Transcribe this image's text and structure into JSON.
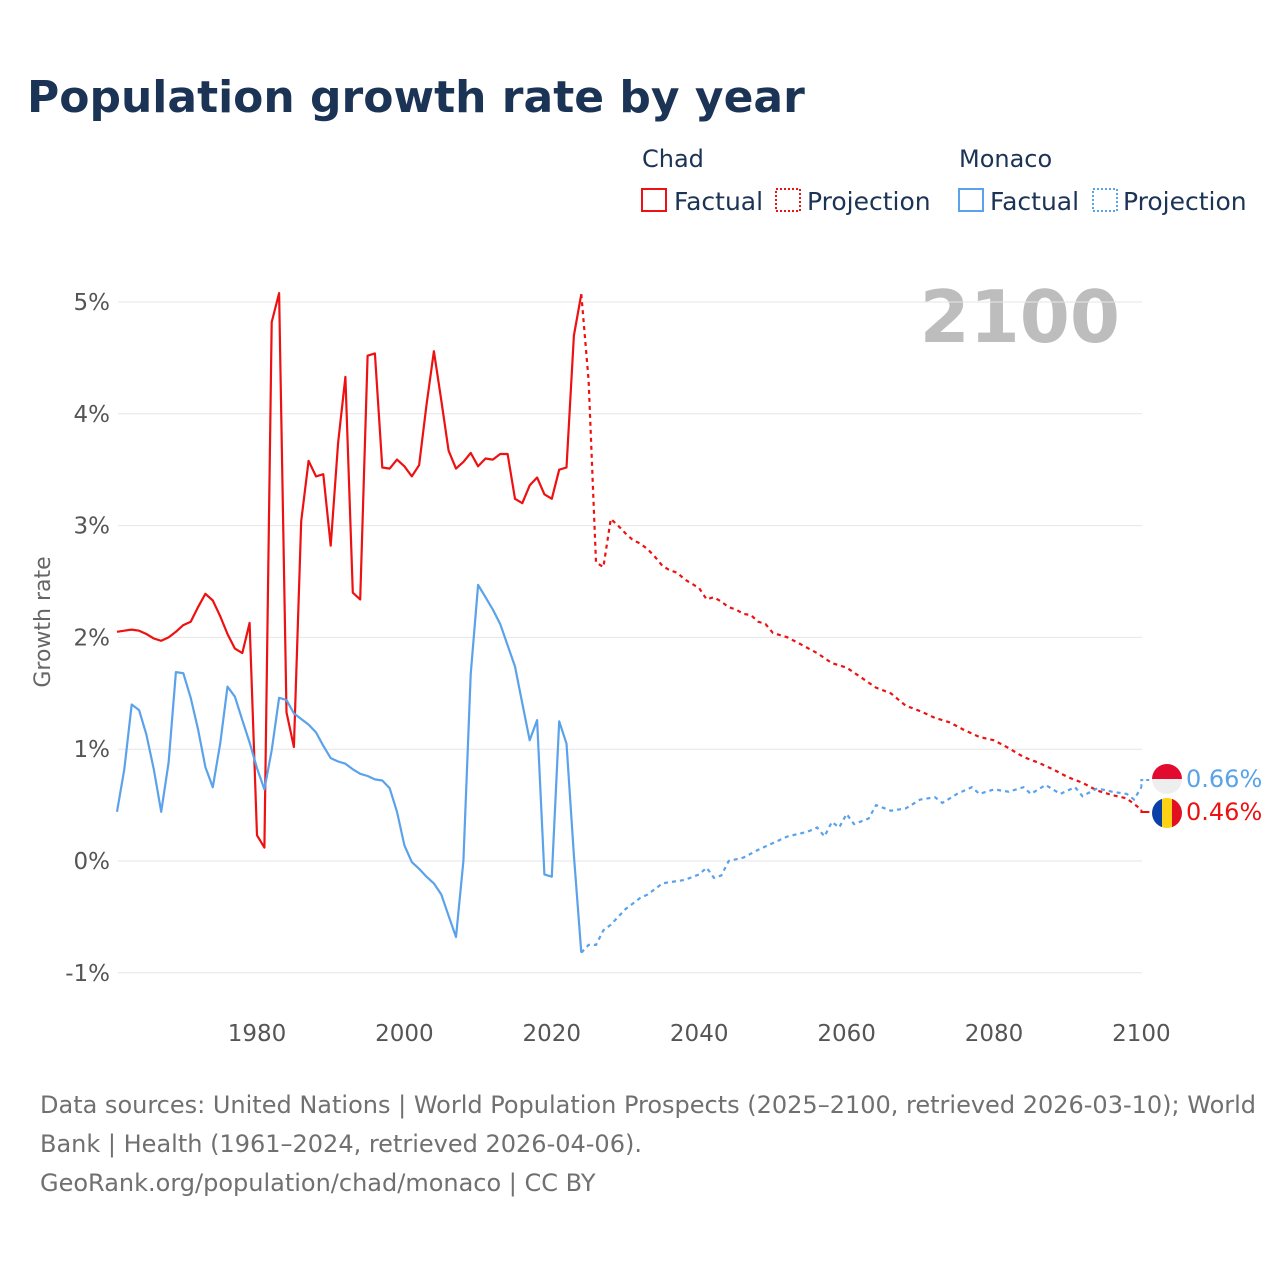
{
  "title": "Population growth rate by year",
  "legend": {
    "groups": [
      {
        "country": "Chad",
        "color": "#ee1111",
        "factual": "Factual",
        "projection": "Projection"
      },
      {
        "country": "Monaco",
        "color": "#5aa2ea",
        "factual": "Factual",
        "projection": "Projection"
      }
    ]
  },
  "current_year_label": "2100",
  "footer": {
    "line1": "Data sources: United Nations | World Population Prospects (2025–2100, retrieved 2026-03-10); World",
    "line2": "Bank | Health (1961–2024, retrieved 2026-04-06).",
    "line3": "GeoRank.org/population/chad/monaco | CC BY"
  },
  "chart_data": {
    "type": "line",
    "title": "Population growth rate by year",
    "xlabel": "",
    "ylabel": "Growth rate",
    "xlim": [
      1961,
      2100
    ],
    "ylim": [
      -1.2,
      5.3
    ],
    "x_ticks": [
      1980,
      2000,
      2020,
      2040,
      2060,
      2080,
      2100
    ],
    "x_tick_labels": [
      "1980",
      "2000",
      "2020",
      "2040",
      "2060",
      "2080",
      "2100"
    ],
    "y_ticks": [
      -1,
      0,
      1,
      2,
      3,
      4,
      5
    ],
    "y_tick_labels": [
      "-1%",
      "0%",
      "1%",
      "2%",
      "3%",
      "4%",
      "5%"
    ],
    "grid": true,
    "legend_position": "top-right",
    "series": [
      {
        "name": "Chad",
        "color": "#ee1111",
        "end_label": "0.46%",
        "factual_start": 1961,
        "factual": [
          2.05,
          2.06,
          2.07,
          2.06,
          2.03,
          1.99,
          1.97,
          2.0,
          2.05,
          2.11,
          2.14,
          2.27,
          2.39,
          2.33,
          2.19,
          2.03,
          1.9,
          1.86,
          2.13,
          0.23,
          0.12,
          4.82,
          5.08,
          1.33,
          1.02,
          3.04,
          3.58,
          3.44,
          3.46,
          2.82,
          3.74,
          4.33,
          2.4,
          2.34,
          4.52,
          4.54,
          3.52,
          3.51,
          3.59,
          3.53,
          3.44,
          3.54,
          4.08,
          4.56,
          4.12,
          3.67,
          3.51,
          3.57,
          3.65,
          3.53,
          3.6,
          3.59,
          3.64,
          3.64,
          3.24,
          3.2,
          3.36,
          3.43,
          3.28,
          3.24,
          3.5,
          3.52,
          4.7,
          5.07
        ],
        "projection": [
          [
            2024,
            5.07
          ],
          [
            2025,
            4.3
          ],
          [
            2026,
            2.67
          ],
          [
            2027,
            2.63
          ],
          [
            2028,
            3.06
          ],
          [
            2029,
            3.0
          ],
          [
            2030,
            2.93
          ],
          [
            2031,
            2.87
          ],
          [
            2032,
            2.84
          ],
          [
            2033,
            2.79
          ],
          [
            2034,
            2.72
          ],
          [
            2035,
            2.64
          ],
          [
            2036,
            2.6
          ],
          [
            2037,
            2.58
          ],
          [
            2038,
            2.52
          ],
          [
            2039,
            2.48
          ],
          [
            2040,
            2.44
          ],
          [
            2041,
            2.34
          ],
          [
            2042,
            2.36
          ],
          [
            2043,
            2.32
          ],
          [
            2044,
            2.27
          ],
          [
            2045,
            2.25
          ],
          [
            2046,
            2.21
          ],
          [
            2047,
            2.2
          ],
          [
            2048,
            2.14
          ],
          [
            2049,
            2.12
          ],
          [
            2050,
            2.04
          ],
          [
            2052,
            2.0
          ],
          [
            2054,
            1.93
          ],
          [
            2056,
            1.86
          ],
          [
            2058,
            1.77
          ],
          [
            2060,
            1.73
          ],
          [
            2062,
            1.64
          ],
          [
            2064,
            1.55
          ],
          [
            2066,
            1.5
          ],
          [
            2068,
            1.39
          ],
          [
            2070,
            1.34
          ],
          [
            2072,
            1.28
          ],
          [
            2074,
            1.24
          ],
          [
            2076,
            1.17
          ],
          [
            2078,
            1.11
          ],
          [
            2080,
            1.08
          ],
          [
            2082,
            1.01
          ],
          [
            2084,
            0.93
          ],
          [
            2086,
            0.88
          ],
          [
            2088,
            0.82
          ],
          [
            2090,
            0.75
          ],
          [
            2092,
            0.7
          ],
          [
            2094,
            0.63
          ],
          [
            2096,
            0.59
          ],
          [
            2098,
            0.56
          ],
          [
            2100,
            0.46
          ]
        ]
      },
      {
        "name": "Monaco",
        "color": "#5aa2ea",
        "end_label": "0.66%",
        "factual_start": 1961,
        "factual": [
          0.44,
          0.82,
          1.4,
          1.35,
          1.13,
          0.82,
          0.44,
          0.88,
          1.69,
          1.68,
          1.46,
          1.18,
          0.84,
          0.66,
          1.05,
          1.56,
          1.47,
          1.26,
          1.06,
          0.83,
          0.64,
          0.99,
          1.46,
          1.44,
          1.32,
          1.27,
          1.22,
          1.15,
          1.03,
          0.92,
          0.89,
          0.87,
          0.82,
          0.78,
          0.76,
          0.73,
          0.72,
          0.65,
          0.44,
          0.14,
          -0.01,
          -0.07,
          -0.14,
          -0.2,
          -0.3,
          -0.49,
          -0.68,
          0.0,
          1.67,
          2.47,
          2.36,
          2.25,
          2.12,
          1.93,
          1.74,
          1.41,
          1.08,
          1.26,
          -0.12,
          -0.14,
          1.25,
          1.05,
          0.05,
          -0.82
        ],
        "projection": [
          [
            2024,
            -0.82
          ],
          [
            2025,
            -0.75
          ],
          [
            2026,
            -0.75
          ],
          [
            2027,
            -0.62
          ],
          [
            2028,
            -0.57
          ],
          [
            2029,
            -0.5
          ],
          [
            2030,
            -0.43
          ],
          [
            2031,
            -0.38
          ],
          [
            2032,
            -0.33
          ],
          [
            2033,
            -0.3
          ],
          [
            2034,
            -0.25
          ],
          [
            2035,
            -0.2
          ],
          [
            2036,
            -0.19
          ],
          [
            2038,
            -0.17
          ],
          [
            2040,
            -0.12
          ],
          [
            2041,
            -0.06
          ],
          [
            2042,
            -0.15
          ],
          [
            2043,
            -0.13
          ],
          [
            2044,
            0.0
          ],
          [
            2046,
            0.03
          ],
          [
            2048,
            0.1
          ],
          [
            2050,
            0.16
          ],
          [
            2052,
            0.22
          ],
          [
            2054,
            0.25
          ],
          [
            2055,
            0.27
          ],
          [
            2056,
            0.3
          ],
          [
            2057,
            0.22
          ],
          [
            2058,
            0.35
          ],
          [
            2059,
            0.3
          ],
          [
            2060,
            0.42
          ],
          [
            2061,
            0.33
          ],
          [
            2063,
            0.38
          ],
          [
            2064,
            0.5
          ],
          [
            2066,
            0.45
          ],
          [
            2068,
            0.47
          ],
          [
            2070,
            0.55
          ],
          [
            2072,
            0.57
          ],
          [
            2073,
            0.52
          ],
          [
            2075,
            0.6
          ],
          [
            2077,
            0.66
          ],
          [
            2078,
            0.6
          ],
          [
            2080,
            0.64
          ],
          [
            2082,
            0.62
          ],
          [
            2084,
            0.66
          ],
          [
            2085,
            0.6
          ],
          [
            2087,
            0.68
          ],
          [
            2089,
            0.6
          ],
          [
            2091,
            0.66
          ],
          [
            2092,
            0.58
          ],
          [
            2094,
            0.65
          ],
          [
            2096,
            0.62
          ],
          [
            2098,
            0.6
          ],
          [
            2099,
            0.55
          ],
          [
            2100,
            0.66
          ]
        ]
      }
    ]
  }
}
